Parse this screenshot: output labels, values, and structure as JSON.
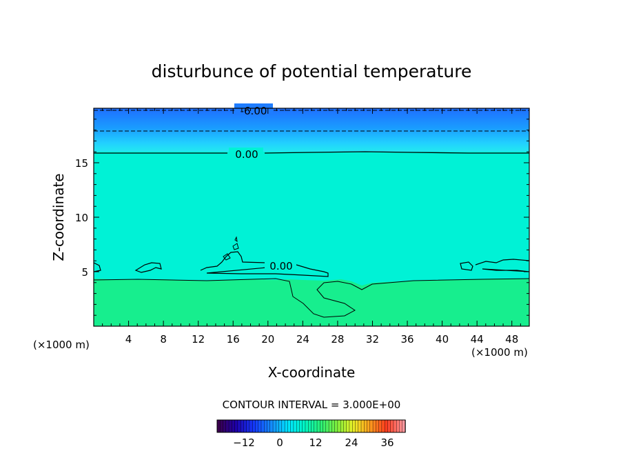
{
  "chart_data": {
    "type": "heatmap",
    "title": "disturbunce of potential temperature",
    "xlabel": "X-coordinate",
    "ylabel": "Z-coordinate",
    "x_unit_left": "(×1000 m)",
    "x_unit_right": "(×1000 m)",
    "xlim": [
      0,
      50
    ],
    "ylim": [
      0,
      20
    ],
    "x_ticks": [
      "4",
      "8",
      "12",
      "16",
      "20",
      "24",
      "28",
      "32",
      "36",
      "40",
      "44",
      "48"
    ],
    "y_ticks": [
      "5",
      "10",
      "15"
    ],
    "contour_interval_text": "CONTOUR INTERVAL = 3.000E+00",
    "contour_labels": [
      "-6.00",
      "0.00",
      "0.00"
    ],
    "colorbar_ticks": [
      "-12",
      "0",
      "12",
      "24",
      "36"
    ],
    "colorbar_range": [
      -21,
      42
    ],
    "colors": {
      "upper_layer": "#1a8cff",
      "mid_layer": "#00f5d4",
      "lower_layer": "#19f08c"
    }
  }
}
